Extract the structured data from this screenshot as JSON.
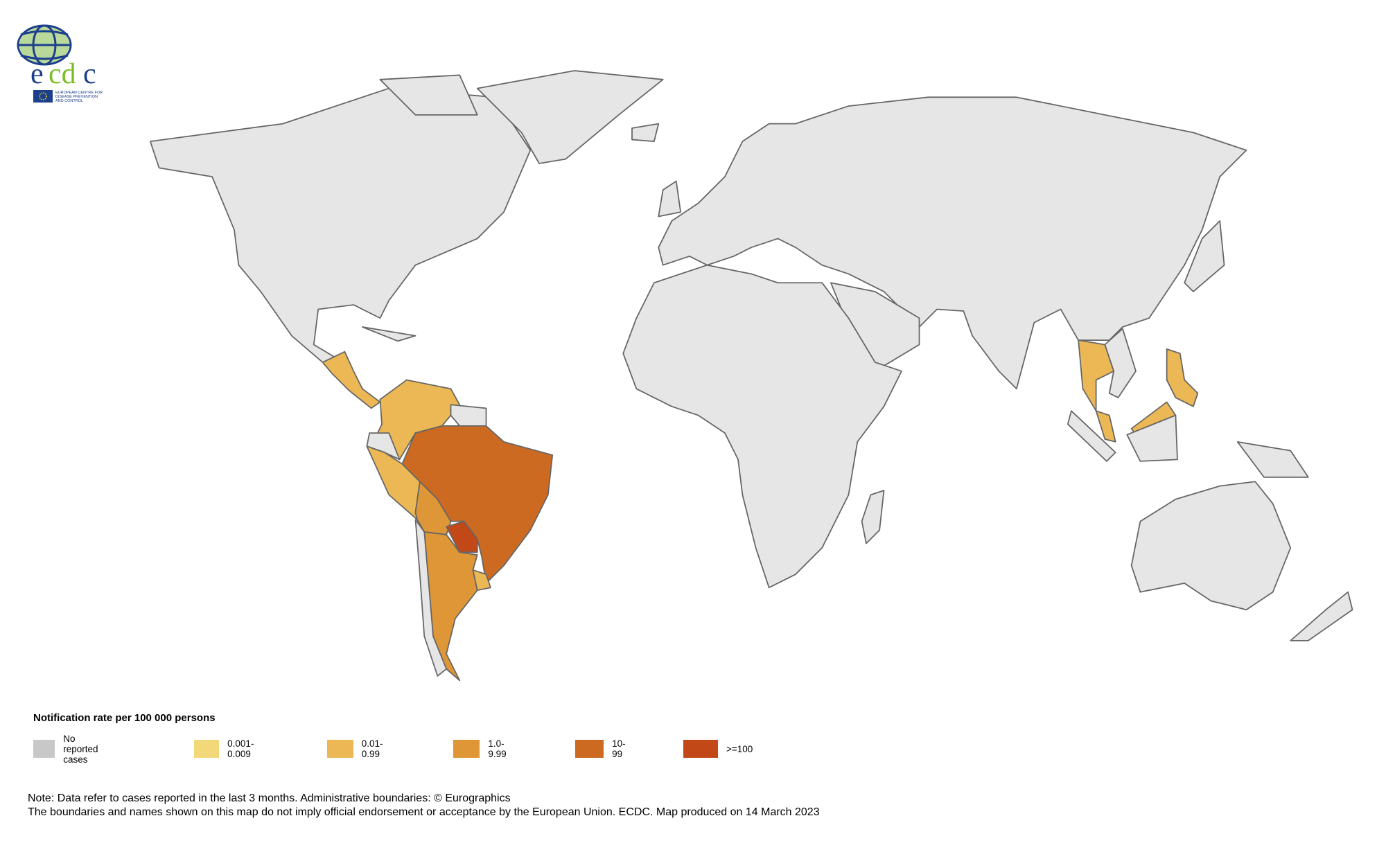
{
  "logo": {
    "text": "ecdc",
    "subtitle": "EUROPEAN CENTRE FOR DISEASE PREVENTION AND CONTROL"
  },
  "legend": {
    "title": "Notification rate per 100 000 persons",
    "categories": [
      {
        "label": "No reported cases",
        "color": "#c8c8c8"
      },
      {
        "label": "0.001-0.009",
        "color": "#f2d878"
      },
      {
        "label": "0.01-0.99",
        "color": "#ebb855"
      },
      {
        "label": "1.0-9.99",
        "color": "#df9636"
      },
      {
        "label": "10-99",
        "color": "#cc6a22"
      },
      {
        "label": ">=100",
        "color": "#c24818"
      }
    ]
  },
  "map_colors": {
    "land": "#e6e6e6",
    "border": "#666666"
  },
  "regions": [
    {
      "name": "North America",
      "category": 0
    },
    {
      "name": "Greenland",
      "category": 0
    },
    {
      "name": "Central America",
      "category": 2
    },
    {
      "name": "Colombia-Venezuela",
      "category": 2
    },
    {
      "name": "Guianas",
      "category": 0
    },
    {
      "name": "Ecuador",
      "category": 0
    },
    {
      "name": "Peru",
      "category": 2
    },
    {
      "name": "Brazil",
      "category": 4
    },
    {
      "name": "Bolivia",
      "category": 3
    },
    {
      "name": "Paraguay",
      "category": 5
    },
    {
      "name": "Argentina",
      "category": 3
    },
    {
      "name": "Chile",
      "category": 0
    },
    {
      "name": "Uruguay",
      "category": 2
    },
    {
      "name": "Eurasia",
      "category": 0
    },
    {
      "name": "Africa",
      "category": 0
    },
    {
      "name": "Thailand",
      "category": 2
    },
    {
      "name": "Malaysia",
      "category": 2
    },
    {
      "name": "Philippines",
      "category": 2
    },
    {
      "name": "Australia",
      "category": 0
    }
  ],
  "notes": [
    "Note: Data refer to cases reported in the last 3 months. Administrative boundaries: © Eurographics",
    "The boundaries and names shown on this map do not imply official endorsement or acceptance by the European Union. ECDC. Map produced on 14 March 2023"
  ]
}
